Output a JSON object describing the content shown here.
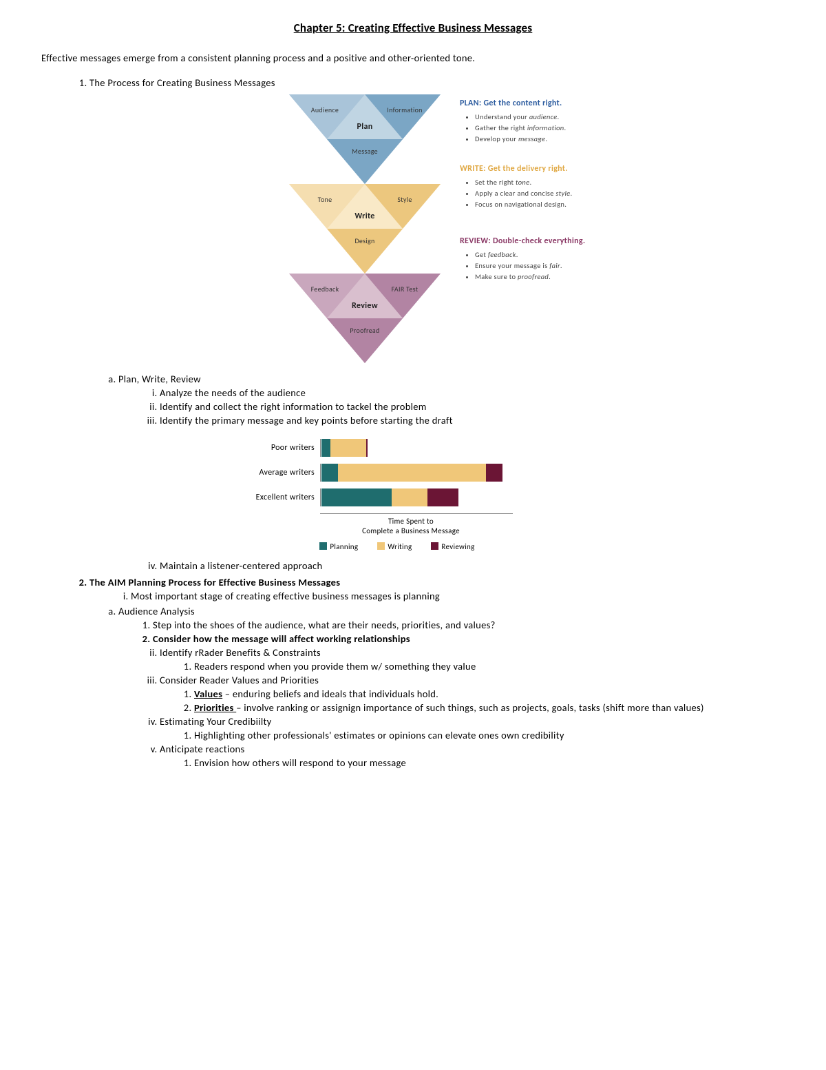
{
  "title": "Chapter 5: Creating Effective Business Messages",
  "intro": "Effective messages emerge from a consistent planning process and a positive and other-oriented tone.",
  "sec1": {
    "heading": "The Process for Creating Business Messages",
    "a_label": "Plan, Write, Review",
    "a_i": "Analyze the needs of the audience",
    "a_ii": "Identify and collect the right information to tackel the problem",
    "a_iii": "Identify the primary message and key points before starting the draft",
    "a_iv": "Maintain a listener-centered approach"
  },
  "sec2": {
    "heading": "The AIM Planning Process for Effective Business Messages",
    "i": "Most important stage of creating effective business messages is planning",
    "a_label": "Audience Analysis",
    "a_1": "Step into the shoes of the audience, what are their needs, priorities, and values?",
    "a_2": "Consider how the message will affect working relationships",
    "ii_label": "Identify rRader Benefits & Constraints",
    "ii_1": "Readers respond when you provide them w/ something they value",
    "iii_label": "Consider Reader Values and Priorities",
    "iii_1_term": "Values",
    "iii_1_rest": " – enduring beliefs and ideals that individuals hold.",
    "iii_2_term": "Priorities ",
    "iii_2_rest": "– involve ranking or assignign importance of such things, such as projects, goals, tasks  (shift more than values)",
    "iv_label": "Estimating Your Credibiilty",
    "iv_1": "Highlighting other professionals' estimates or opinions can elevate ones own credibility",
    "v_label": "Anticipate reactions",
    "v_1": "Envision how others will respond to your message"
  },
  "triangles": {
    "plan": {
      "colors": {
        "light": "#a9c4d9",
        "mid": "#8fb3ce",
        "dark": "#7ba6c5",
        "inner": "#c5d8e5"
      },
      "top_left": "Audience",
      "top_right": "Information",
      "center": "Plan",
      "bottom": "Message"
    },
    "write": {
      "colors": {
        "light": "#f5deb0",
        "mid": "#f0d094",
        "dark": "#ecc77e",
        "inner": "#f9ebcc"
      },
      "top_left": "Tone",
      "top_right": "Style",
      "center": "Write",
      "bottom": "Design"
    },
    "review": {
      "colors": {
        "light": "#c9a7bd",
        "mid": "#bc92ae",
        "dark": "#b284a3",
        "inner": "#dcc4d2"
      },
      "top_left": "Feedback",
      "top_right": "FAIR Test",
      "center": "Review",
      "bottom": "Proofread"
    }
  },
  "side": {
    "plan": {
      "title": "PLAN: Get the content right.",
      "b1a": "Understand your ",
      "b1b": "audience",
      "b1c": ".",
      "b2a": "Gather the right ",
      "b2b": "information",
      "b2c": ".",
      "b3a": "Develop your ",
      "b3b": "message",
      "b3c": "."
    },
    "write": {
      "title": "WRITE: Get the delivery right.",
      "b1a": "Set the right ",
      "b1b": "tone",
      "b1c": ".",
      "b2a": "Apply a clear and concise ",
      "b2b": "style",
      "b2c": ".",
      "b3a": "Focus on navigational design."
    },
    "review": {
      "title": "REVIEW: Double-check everything.",
      "b1a": "Get ",
      "b1b": "feedback",
      "b1c": ".",
      "b2a": "Ensure your message is ",
      "b2b": "fair",
      "b2c": ".",
      "b3a": "Make sure to ",
      "b3b": "proofread",
      "b3c": "."
    }
  },
  "chart": {
    "type": "stacked-horizontal-bar",
    "categories": [
      "Poor writers",
      "Average writers",
      "Excellent writers"
    ],
    "series": [
      "Planning",
      "Writing",
      "Reviewing"
    ],
    "series_colors": [
      "#1f6d6e",
      "#f0c779",
      "#6b1535"
    ],
    "max_total": 260,
    "data": [
      {
        "planning": 12,
        "writing": 48,
        "reviewing": 2
      },
      {
        "planning": 22,
        "writing": 200,
        "reviewing": 22
      },
      {
        "planning": 95,
        "writing": 48,
        "reviewing": 42
      }
    ],
    "xlabel_l1": "Time Spent to",
    "xlabel_l2": "Complete a Business Message",
    "axis_color": "#888888",
    "label_fontsize": 12
  }
}
